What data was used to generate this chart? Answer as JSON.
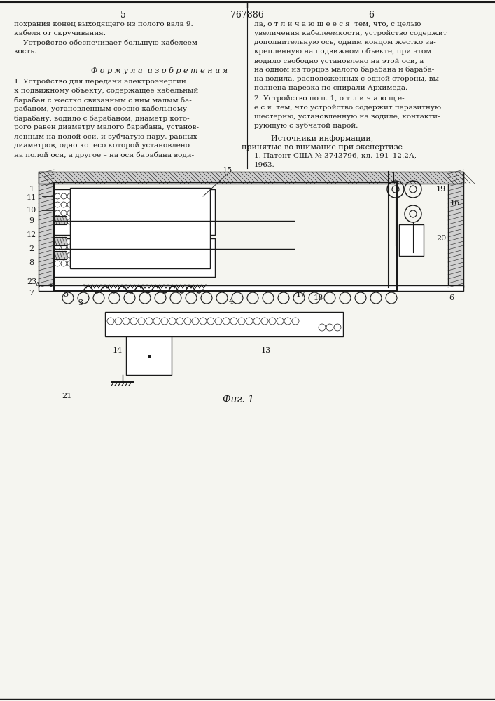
{
  "page_width": 7.07,
  "page_height": 10.0,
  "bg_color": "#f5f5f0",
  "text_color": "#1a1a1a",
  "patent_number": "767886",
  "page_left": "5",
  "page_right": "6",
  "formula_title": "Ф о р м у л а  и з о б р е т е н и я",
  "formula_text_left": [
    "1. Устройство для передачи электроэнергии",
    "к подвижному объекту, содержащее кабельный",
    "барабан с жестко связанным с ним малым ба-",
    "рабаном, установленным соосно кабельному",
    "барабану, водило с барабаном, диаметр кото-",
    "рого равен диаметру малого барабана, установ-",
    "ленным на полой оси, и зубчатую пару. равных",
    "диаметров, одно колесо которой установлено",
    "на полой оси, а другое – на оси барабана води-"
  ],
  "formula_text_right": [
    "ла, о т л и ч а ю щ е е с я  тем, что, с целью",
    "увеличения кабелеемкости, устройство содержит",
    "дополнительную ось, одним концом жестко за-",
    "крепленную на подвижном объекте, при этом",
    "водило свободно установлено на этой оси, а",
    "на одном из торцов малого барабана и бараба-",
    "на водила, расположенных с одной стороны, вы-",
    "полнена нарезка по спирали Архимеда.",
    "2. Устройство по п. 1, о т л и ч а ю щ е-",
    "е с я  тем, что устройство содержит паразитную",
    "шестерню, установленную на водиле, контакти-",
    "рующую с зубчатой парой."
  ],
  "sources_title": "Источники информации,",
  "sources_subtitle": "принятые во внимание при экспертизе",
  "source1": "1. Патент США № 3743796, кл. 191–12.2А,",
  "source_year": "1963.",
  "intro_text_left": [
    "похрания конец выходящего из полого вала 9.",
    "кабеля от скручивания.",
    "    Устройство обеспечивает большую кабелеем-",
    "кость."
  ],
  "fig_label": "Фиг. 1"
}
